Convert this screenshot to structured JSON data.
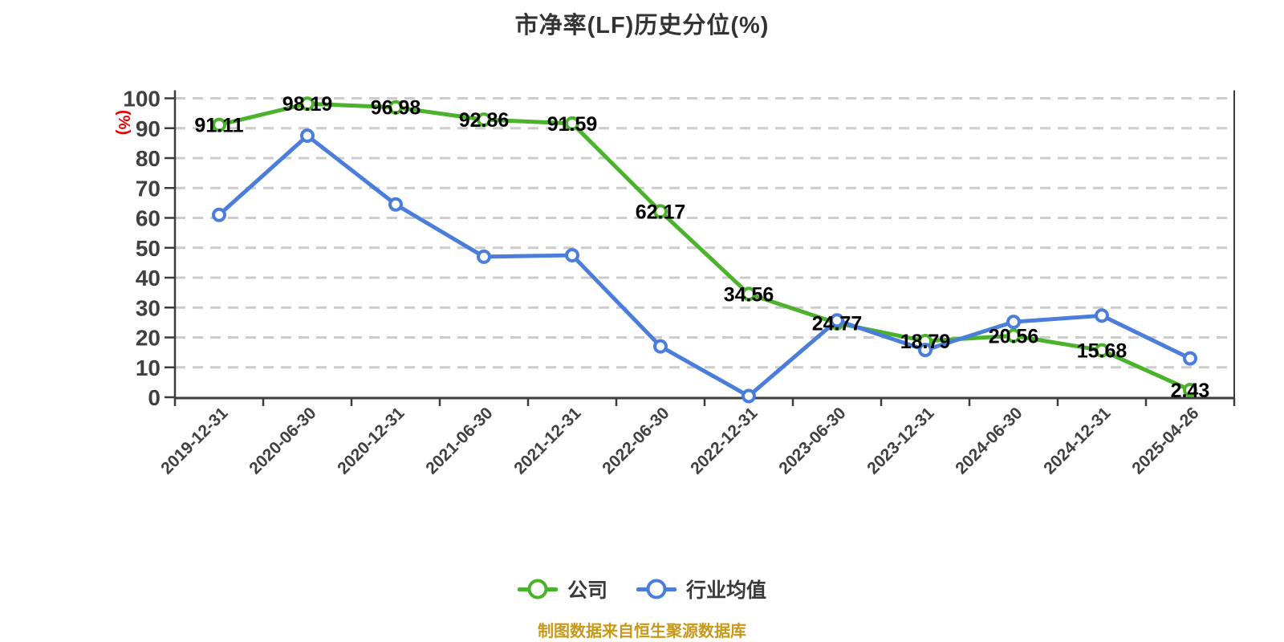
{
  "title": {
    "text": "市净率(LF)历史分位(%)",
    "color": "#333333"
  },
  "y_axis": {
    "name": "(%)",
    "name_color": "#e60000",
    "tick_labels": [
      "100",
      "90",
      "80",
      "70",
      "60",
      "50",
      "40",
      "30",
      "20",
      "10",
      "0"
    ]
  },
  "x_axis": {
    "tick_labels": [
      "2019-12-31",
      "2020-06-30",
      "2020-12-31",
      "2021-06-30",
      "2021-12-31",
      "2022-06-30",
      "2022-12-31",
      "2023-06-30",
      "2023-12-31",
      "2024-06-30",
      "2024-12-31",
      "2025-04-26"
    ]
  },
  "legend": {
    "items": [
      {
        "label": "公司",
        "color": "#4bb32b"
      },
      {
        "label": "行业均值",
        "color": "#4b7edb"
      }
    ]
  },
  "footer": {
    "text": "制图数据来自恒生聚源数据库",
    "color": "#c8981a"
  },
  "colors": {
    "grid": "#cccccc",
    "axis_line": "#3c3c3c",
    "tick_text": "#404040",
    "data_label": "#000000",
    "marker_fill": "#ffffff"
  },
  "chart_data": {
    "type": "line",
    "title": "市净率(LF)历史分位(%)",
    "categories": [
      "2019-12-31",
      "2020-06-30",
      "2020-12-31",
      "2021-06-30",
      "2021-12-31",
      "2022-06-30",
      "2022-12-31",
      "2023-06-30",
      "2023-12-31",
      "2024-06-30",
      "2024-12-31",
      "2025-04-26"
    ],
    "series": [
      {
        "name": "公司",
        "color": "#4bb32b",
        "values": [
          91.11,
          98.19,
          96.98,
          92.86,
          91.59,
          62.17,
          34.56,
          24.77,
          18.79,
          20.56,
          15.68,
          2.43
        ],
        "data_labels_shown": true
      },
      {
        "name": "行业均值",
        "color": "#4b7edb",
        "values": [
          61,
          87.5,
          64.5,
          47,
          47.5,
          17,
          0.4,
          25.7,
          15.8,
          25.2,
          27.3,
          13
        ],
        "data_labels_shown": false
      }
    ],
    "xlabel": "",
    "ylabel": "(%)",
    "ylim": [
      0,
      100
    ],
    "ytick_step": 10,
    "grid": {
      "horizontal_dashed": true,
      "vertical": false
    },
    "legend_position": "bottom",
    "marker": "hollow-circle"
  }
}
